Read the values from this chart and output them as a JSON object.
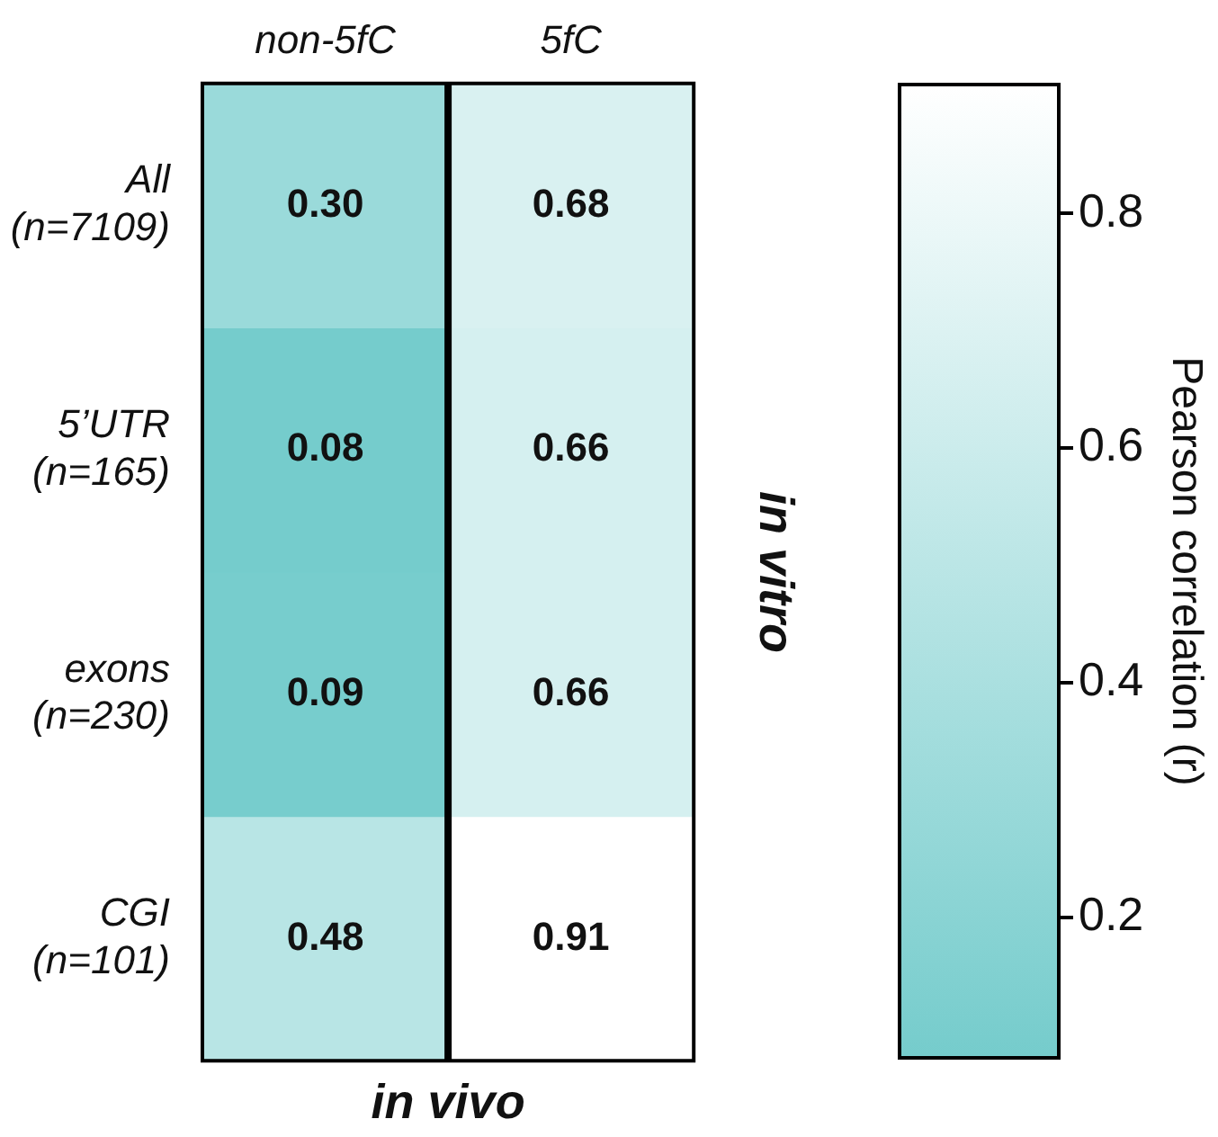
{
  "chart_data": {
    "type": "heatmap",
    "xlabel": "in vivo",
    "y2label": "in vitro",
    "clabel": "Pearson correlation (r)",
    "categories": [
      "non-5fC",
      "5fC"
    ],
    "y_categories": [
      "All\n(n=7109)",
      "5’UTR\n(n=165)",
      "exons\n(n=230)",
      "CGI\n(n=101)"
    ],
    "cells": [
      [
        0.3,
        0.68
      ],
      [
        0.08,
        0.66
      ],
      [
        0.09,
        0.66
      ],
      [
        0.48,
        0.91
      ]
    ],
    "cell_labels": [
      [
        "0.30",
        "0.68"
      ],
      [
        "0.08",
        "0.66"
      ],
      [
        "0.09",
        "0.66"
      ],
      [
        "0.48",
        "0.91"
      ]
    ],
    "clim": [
      0.08,
      0.91
    ],
    "cticks": [
      0.2,
      0.4,
      0.6,
      0.8
    ]
  }
}
